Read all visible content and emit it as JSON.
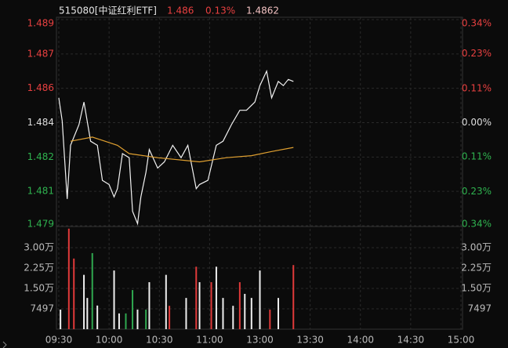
{
  "header": {
    "code": "515080[中证红利ETF]",
    "price": "1.486",
    "change": "0.13%",
    "last": "1.4862"
  },
  "chart_data": [
    {
      "type": "line",
      "xlim": [
        0,
        240
      ],
      "xticks": [
        {
          "value": 0,
          "label": "09:30"
        },
        {
          "value": 30,
          "label": "10:00"
        },
        {
          "value": 60,
          "label": "10:30"
        },
        {
          "value": 90,
          "label": "11:00"
        },
        {
          "value": 120,
          "label": "13:00"
        },
        {
          "value": 150,
          "label": "13:30"
        },
        {
          "value": 180,
          "label": "14:00"
        },
        {
          "value": 210,
          "label": "14:30"
        },
        {
          "value": 240,
          "label": "15:00"
        }
      ],
      "ylim": [
        1.479,
        1.489
      ],
      "yticks": [
        {
          "value": 1.479,
          "label": "1.479"
        },
        {
          "value": 1.48067,
          "label": "1.481"
        },
        {
          "value": 1.48233,
          "label": "1.482"
        },
        {
          "value": 1.484,
          "label": "1.484"
        },
        {
          "value": 1.48567,
          "label": "1.486"
        },
        {
          "value": 1.48733,
          "label": "1.487"
        },
        {
          "value": 1.489,
          "label": "1.489"
        }
      ],
      "y2lim": [
        -0.337,
        0.337
      ],
      "y2ticks": [
        {
          "value": -0.337,
          "label": "0.34%"
        },
        {
          "value": -0.225,
          "label": "0.23%"
        },
        {
          "value": -0.112,
          "label": "0.11%"
        },
        {
          "value": 0,
          "label": "0.00%"
        },
        {
          "value": 0.112,
          "label": "0.11%"
        },
        {
          "value": 0.225,
          "label": "0.23%"
        },
        {
          "value": 0.337,
          "label": "0.34%"
        }
      ],
      "grid": true,
      "series": [
        {
          "color": "#f2f2f2",
          "x": [
            0,
            2,
            5,
            7,
            12,
            15,
            19,
            23,
            26,
            30,
            33,
            35,
            38,
            42,
            44,
            47,
            49,
            52,
            54,
            59,
            63,
            68,
            73,
            77,
            82,
            84,
            89,
            94,
            98,
            103,
            108,
            112,
            117,
            120,
            124,
            127,
            131,
            134,
            137,
            140
          ],
          "values": [
            1.4852,
            1.4841,
            1.4803,
            1.4829,
            1.4839,
            1.485,
            1.4831,
            1.4829,
            1.4812,
            1.481,
            1.4804,
            1.4808,
            1.4825,
            1.4823,
            1.4797,
            1.4791,
            1.4804,
            1.4816,
            1.4827,
            1.4818,
            1.4821,
            1.4829,
            1.4823,
            1.4829,
            1.4808,
            1.481,
            1.4812,
            1.4829,
            1.4831,
            1.4839,
            1.4846,
            1.4846,
            1.485,
            1.4858,
            1.4865,
            1.4852,
            1.486,
            1.4858,
            1.4861,
            1.486
          ]
        },
        {
          "color": "#e0a030",
          "x": [
            7,
            20,
            35,
            42,
            59,
            84,
            100,
            115,
            127,
            140
          ],
          "values": [
            1.4831,
            1.4833,
            1.4829,
            1.4825,
            1.4823,
            1.4821,
            1.4823,
            1.4824,
            1.4826,
            1.4828
          ]
        }
      ]
    },
    {
      "type": "bar",
      "xlim": [
        0,
        240
      ],
      "ylim": [
        0,
        37500
      ],
      "yticks": [
        {
          "value": 7497,
          "label": "7497"
        },
        {
          "value": 15000,
          "label": "1.50万"
        },
        {
          "value": 22500,
          "label": "2.25万"
        },
        {
          "value": 30000,
          "label": "3.00万"
        }
      ],
      "x": [
        1,
        6,
        9,
        15,
        17,
        20,
        23,
        33,
        36,
        40,
        44,
        47,
        52,
        54,
        64,
        66,
        76,
        82,
        84,
        91,
        94,
        98,
        104,
        108,
        111,
        115,
        120,
        126,
        131,
        140
      ],
      "values": [
        7200,
        37000,
        26000,
        20000,
        11500,
        28000,
        8700,
        21600,
        5800,
        5800,
        14400,
        7200,
        7200,
        17300,
        20000,
        8600,
        11500,
        23000,
        17300,
        17300,
        23000,
        11500,
        8600,
        17300,
        13000,
        11500,
        21600,
        7200,
        11500,
        23600
      ],
      "colors": [
        "#eeeeee",
        "#e03a3a",
        "#e03a3a",
        "#eeeeee",
        "#eeeeee",
        "#2fa84f",
        "#eeeeee",
        "#eeeeee",
        "#eeeeee",
        "#2fa84f",
        "#2fa84f",
        "#eeeeee",
        "#2fa84f",
        "#eeeeee",
        "#eeeeee",
        "#e03a3a",
        "#eeeeee",
        "#e03a3a",
        "#eeeeee",
        "#e03a3a",
        "#eeeeee",
        "#eeeeee",
        "#eeeeee",
        "#e03a3a",
        "#eeeeee",
        "#eeeeee",
        "#eeeeee",
        "#e03a3a",
        "#eeeeee",
        "#e03a3a"
      ]
    }
  ]
}
